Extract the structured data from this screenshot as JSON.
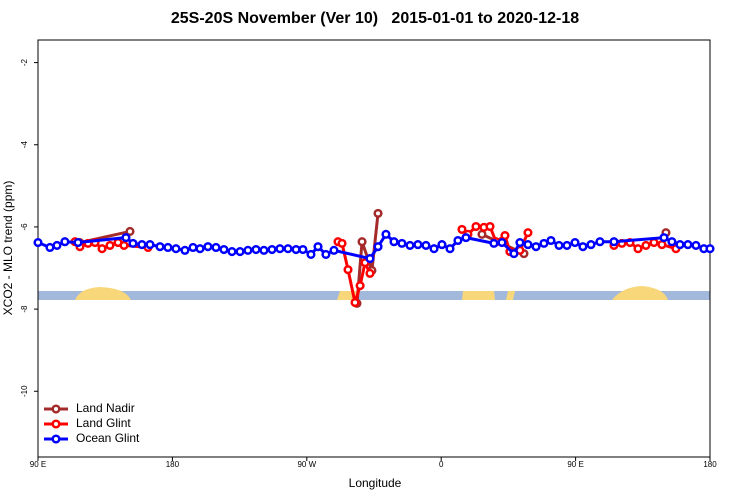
{
  "chart_data": {
    "type": "line",
    "title": "25S-20S November (Ver 10)   2015-01-01 to 2020-12-18",
    "xlabel": "Longitude",
    "ylabel": "XCO2 - MLO trend (ppm)",
    "xlim": [
      90,
      540
    ],
    "ylim": [
      -11.6,
      -1.45
    ],
    "xticks": [
      {
        "value": 90,
        "label": "90 E"
      },
      180,
      {
        "value": 270,
        "label": "90 W"
      },
      {
        "value": 360,
        "label": "0"
      },
      {
        "value": 450,
        "label": "90 E"
      },
      {
        "value": 540,
        "label": "180"
      }
    ],
    "yticks": [
      -2,
      -4,
      -6,
      -8,
      -10
    ],
    "legend": "bottom-left",
    "series": [
      {
        "name": "Land Nadir",
        "color": "#a52a2a",
        "x": [
          118,
          151.6,
          null,
          303.6,
          307,
          313.6,
          317.7,
          null,
          387.3,
          415.4,
          null,
          510.5
        ],
        "values": [
          -6.38,
          -6.11,
          null,
          -7.86,
          -6.36,
          -7.06,
          -5.67,
          null,
          -6.18,
          -6.65,
          null,
          -6.14
        ]
      },
      {
        "name": "Land Glint",
        "color": "#ff0000",
        "x": [
          114.8,
          118.1,
          123.5,
          128.2,
          132.9,
          138.2,
          143.6,
          147.6,
          163.7,
          null,
          290.9,
          293.6,
          297.6,
          302.3,
          305.7,
          309,
          312.3,
          null,
          373.9,
          377.9,
          383.3,
          388.6,
          392.7,
          396.7,
          402.7,
          406,
          412.7,
          418.1,
          null,
          475.7,
          481,
          486.4,
          491.8,
          497.1,
          502.5,
          507.8,
          517.2
        ],
        "values": [
          -6.36,
          -6.48,
          -6.4,
          -6.38,
          -6.53,
          -6.45,
          -6.38,
          -6.45,
          -6.5,
          null,
          -6.36,
          -6.4,
          -7.04,
          -7.84,
          -7.43,
          -6.87,
          -7.13,
          null,
          -6.06,
          -6.18,
          -5.99,
          -6.01,
          -5.99,
          -6.36,
          -6.21,
          -6.6,
          -6.57,
          -6.14,
          null,
          -6.45,
          -6.4,
          -6.38,
          -6.53,
          -6.45,
          -6.38,
          -6.43,
          -6.53
        ]
      },
      {
        "name": "Ocean Glint",
        "color": "#0000ff",
        "x": [
          90,
          98,
          102.7,
          108,
          116.8,
          148.9,
          153.6,
          159.6,
          165,
          171.7,
          177,
          182.4,
          188.4,
          193.8,
          198.5,
          203.8,
          209.2,
          214.5,
          219.9,
          225.3,
          230.6,
          236,
          241.3,
          246.7,
          252,
          257.4,
          262.8,
          267.4,
          272.8,
          277.5,
          282.8,
          288.2,
          312.3,
          317.7,
          323,
          328.4,
          333.7,
          339.1,
          344.4,
          349.8,
          355.2,
          360.5,
          365.9,
          371.2,
          376.6,
          395.3,
          400.7,
          408.7,
          412.7,
          418.1,
          423.5,
          428.8,
          433.5,
          438.9,
          444.2,
          449.6,
          454.9,
          460.3,
          466.3,
          475.7,
          509.2,
          514.5,
          519.9,
          525.2,
          530.6,
          535.9,
          540
        ],
        "values": [
          -6.38,
          -6.5,
          -6.45,
          -6.36,
          -6.38,
          -6.26,
          -6.4,
          -6.43,
          -6.43,
          -6.48,
          -6.5,
          -6.53,
          -6.57,
          -6.5,
          -6.53,
          -6.48,
          -6.5,
          -6.55,
          -6.6,
          -6.6,
          -6.57,
          -6.55,
          -6.57,
          -6.55,
          -6.53,
          -6.53,
          -6.55,
          -6.55,
          -6.67,
          -6.48,
          -6.67,
          -6.57,
          -6.77,
          -6.48,
          -6.18,
          -6.36,
          -6.4,
          -6.45,
          -6.43,
          -6.45,
          -6.53,
          -6.43,
          -6.53,
          -6.33,
          -6.26,
          -6.4,
          -6.38,
          -6.65,
          -6.38,
          -6.43,
          -6.48,
          -6.4,
          -6.33,
          -6.45,
          -6.45,
          -6.38,
          -6.48,
          -6.43,
          -6.36,
          -6.36,
          -6.26,
          -6.36,
          -6.43,
          -6.43,
          -6.45,
          -6.53,
          -6.53
        ]
      }
    ]
  }
}
